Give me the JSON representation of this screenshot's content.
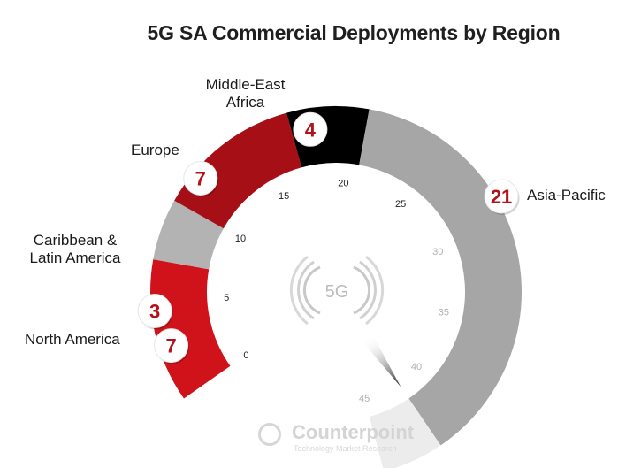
{
  "chart_data": {
    "type": "gauge",
    "title": "5G SA Commercial Deployments by Region",
    "scale": {
      "min": 0,
      "max": 45,
      "ticks": [
        0,
        5,
        10,
        15,
        20,
        25,
        30,
        35,
        40,
        45
      ]
    },
    "segments": [
      {
        "name": "North America",
        "value": 7,
        "color": "#d0121b"
      },
      {
        "name": "Caribbean & Latin America",
        "value": 3,
        "color": "#b3b3b3"
      },
      {
        "name": "Europe",
        "value": 7,
        "color": "#a50f15"
      },
      {
        "name": "Middle-East Africa",
        "value": 4,
        "color": "#000000"
      },
      {
        "name": "Asia-Pacific",
        "value": 21,
        "color": "#a6a6a6"
      }
    ],
    "needle_value": 42
  },
  "labels": {
    "mea": [
      "Middle-East",
      "Africa"
    ],
    "europe": "Europe",
    "cla": [
      "Caribbean &",
      "Latin America"
    ],
    "na": "North America",
    "ap": "Asia-Pacific"
  },
  "center_icon": {
    "name": "5g-signal-icon",
    "text": "5G"
  },
  "watermark": {
    "name": "Counterpoint",
    "tagline": "Technology Market Research"
  },
  "colors": {
    "badge_text": "#b3121b",
    "remainder": "#ececec",
    "tick_text": "#222222",
    "tick_text_light": "#b0b0b0"
  }
}
